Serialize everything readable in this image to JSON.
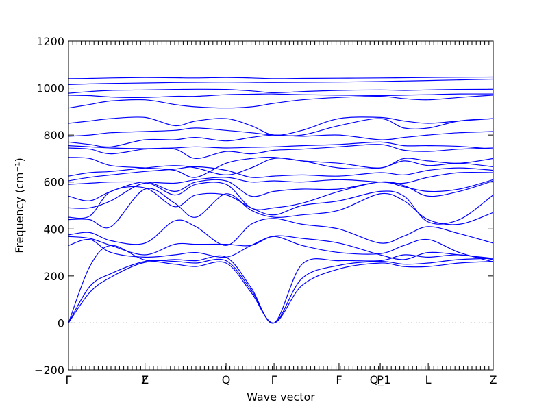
{
  "chart_data": {
    "type": "line",
    "xlabel": "Wave vector",
    "ylabel": "Frequency (cm⁻¹)",
    "ylim": [
      -200,
      1200
    ],
    "yticks": [
      -200,
      0,
      200,
      400,
      600,
      800,
      1000,
      1200
    ],
    "xlim": [
      0,
      1
    ],
    "hline": 0,
    "line_color": "#0000ff",
    "kpoint_labels": [
      {
        "x": 0.0,
        "label": "Γ"
      },
      {
        "x": 0.18,
        "label": "F"
      },
      {
        "x": 0.18,
        "label": "Z"
      },
      {
        "x": 0.371,
        "label": "Q"
      },
      {
        "x": 0.484,
        "label": "Γ"
      },
      {
        "x": 0.637,
        "label": "F"
      },
      {
        "x": 0.734,
        "label": "P"
      },
      {
        "x": 0.734,
        "label": "Q_1"
      },
      {
        "x": 0.847,
        "label": "L"
      },
      {
        "x": 1.0,
        "label": "Z"
      }
    ],
    "x": [
      0,
      0.05,
      0.1,
      0.18,
      0.25,
      0.3,
      0.371,
      0.43,
      0.484,
      0.55,
      0.637,
      0.734,
      0.79,
      0.847,
      0.92,
      1.0
    ],
    "series": [
      {
        "values": [
          0,
          130,
          195,
          258,
          250,
          240,
          255,
          130,
          0,
          160,
          230,
          255,
          240,
          240,
          255,
          262
        ]
      },
      {
        "values": [
          0,
          155,
          210,
          262,
          262,
          255,
          265,
          140,
          0,
          190,
          245,
          262,
          250,
          255,
          270,
          275
        ]
      },
      {
        "values": [
          0,
          240,
          330,
          268,
          270,
          265,
          280,
          150,
          0,
          250,
          265,
          265,
          290,
          280,
          290,
          270
        ]
      },
      {
        "values": [
          330,
          355,
          300,
          280,
          290,
          300,
          280,
          330,
          370,
          360,
          340,
          290,
          270,
          300,
          290,
          275
        ]
      },
      {
        "values": [
          368,
          360,
          330,
          290,
          335,
          335,
          335,
          330,
          368,
          330,
          300,
          295,
          330,
          355,
          300,
          260
        ]
      },
      {
        "values": [
          375,
          385,
          350,
          340,
          435,
          410,
          330,
          420,
          445,
          420,
          400,
          340,
          370,
          410,
          380,
          340
        ]
      },
      {
        "values": [
          440,
          440,
          410,
          570,
          510,
          450,
          550,
          480,
          450,
          460,
          480,
          550,
          520,
          440,
          420,
          470
        ]
      },
      {
        "values": [
          450,
          455,
          560,
          575,
          495,
          545,
          545,
          490,
          460,
          500,
          520,
          560,
          540,
          430,
          440,
          545
        ]
      },
      {
        "values": [
          490,
          490,
          520,
          595,
          545,
          590,
          590,
          490,
          490,
          510,
          560,
          600,
          585,
          540,
          560,
          605
        ]
      },
      {
        "values": [
          540,
          520,
          560,
          600,
          560,
          600,
          605,
          540,
          560,
          570,
          570,
          600,
          580,
          560,
          570,
          610
        ]
      },
      {
        "values": [
          590,
          595,
          600,
          600,
          595,
          610,
          620,
          600,
          605,
          600,
          610,
          600,
          595,
          620,
          640,
          640
        ]
      },
      {
        "values": [
          605,
          620,
          630,
          645,
          655,
          665,
          650,
          620,
          625,
          630,
          625,
          640,
          630,
          650,
          660,
          650
        ]
      },
      {
        "values": [
          625,
          640,
          645,
          660,
          670,
          660,
          630,
          660,
          700,
          690,
          660,
          660,
          690,
          670,
          680,
          665
        ]
      },
      {
        "values": [
          705,
          700,
          670,
          660,
          650,
          620,
          680,
          700,
          705,
          690,
          680,
          660,
          700,
          690,
          680,
          700
        ]
      },
      {
        "values": [
          745,
          740,
          720,
          740,
          740,
          700,
          730,
          720,
          735,
          740,
          750,
          760,
          735,
          730,
          740,
          745
        ]
      },
      {
        "values": [
          755,
          750,
          745,
          742,
          745,
          750,
          745,
          748,
          750,
          755,
          760,
          770,
          755,
          755,
          752,
          740
        ]
      },
      {
        "values": [
          770,
          760,
          750,
          780,
          780,
          790,
          775,
          790,
          800,
          795,
          800,
          780,
          790,
          800,
          810,
          815
        ]
      },
      {
        "values": [
          795,
          800,
          810,
          815,
          820,
          830,
          820,
          810,
          800,
          800,
          840,
          870,
          830,
          830,
          860,
          870
        ]
      },
      {
        "values": [
          850,
          860,
          870,
          875,
          840,
          860,
          870,
          840,
          800,
          820,
          870,
          875,
          860,
          850,
          860,
          870
        ]
      },
      {
        "values": [
          915,
          930,
          945,
          950,
          930,
          920,
          915,
          920,
          935,
          950,
          960,
          965,
          955,
          950,
          960,
          970
        ]
      },
      {
        "values": [
          970,
          968,
          962,
          960,
          965,
          965,
          972,
          974,
          975,
          972,
          970,
          968,
          970,
          972,
          975,
          975
        ]
      },
      {
        "values": [
          978,
          985,
          990,
          992,
          994,
          995,
          994,
          988,
          980,
          985,
          990,
          992,
          990,
          992,
          994,
          995
        ]
      },
      {
        "values": [
          1015,
          1018,
          1020,
          1022,
          1024,
          1025,
          1026,
          1025,
          1024,
          1025,
          1026,
          1028,
          1030,
          1032,
          1035,
          1038
        ]
      },
      {
        "values": [
          1040,
          1041,
          1043,
          1045,
          1044,
          1043,
          1045,
          1043,
          1040,
          1041,
          1042,
          1043,
          1044,
          1045,
          1046,
          1047
        ]
      }
    ]
  }
}
